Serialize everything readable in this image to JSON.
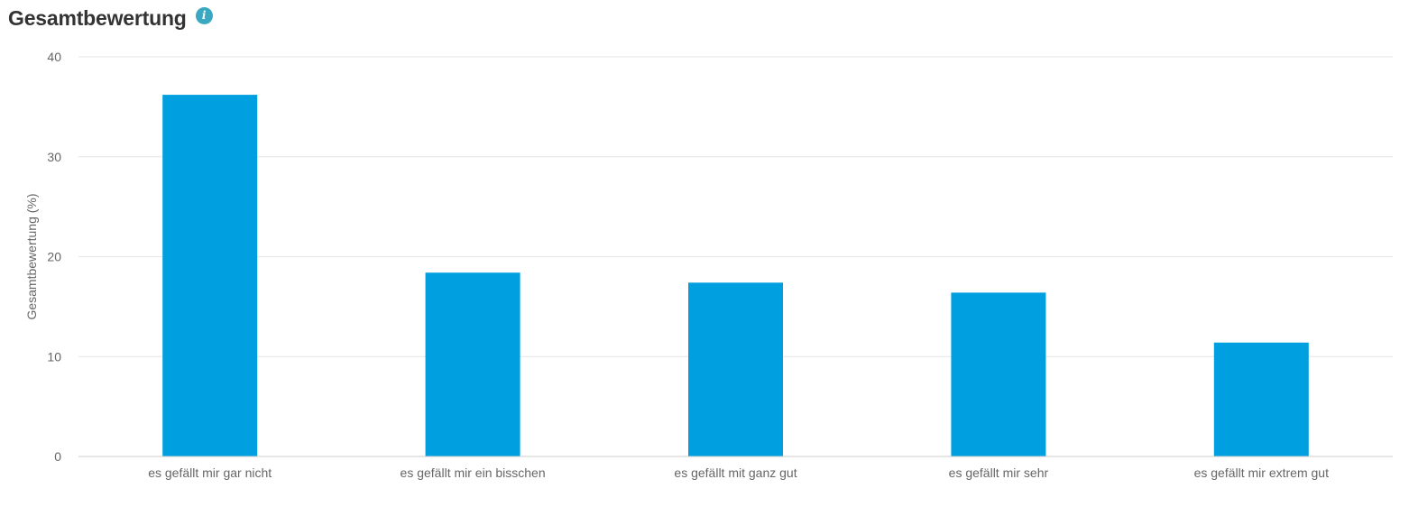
{
  "header": {
    "title": "Gesamtbewertung",
    "info_icon": "info-icon"
  },
  "colors": {
    "bar": "#009fdf",
    "info": "#3aa8c1",
    "grid": "#e6e6e6",
    "axis_line": "#cccccc",
    "tick_text": "#666666",
    "title_text": "#333333"
  },
  "chart_data": {
    "type": "bar",
    "title": "Gesamtbewertung",
    "xlabel": "",
    "ylabel": "Gesamtbewertung (%)",
    "ylim": [
      0,
      40
    ],
    "yticks": [
      0,
      10,
      20,
      30,
      40
    ],
    "grid": true,
    "legend": "none",
    "categories": [
      "es gefällt mir gar nicht",
      "es gefällt mir ein bisschen",
      "es gefällt mit ganz gut",
      "es gefällt mir sehr",
      "es gefällt mir extrem gut"
    ],
    "values": [
      36.2,
      18.4,
      17.4,
      16.4,
      11.4
    ]
  }
}
